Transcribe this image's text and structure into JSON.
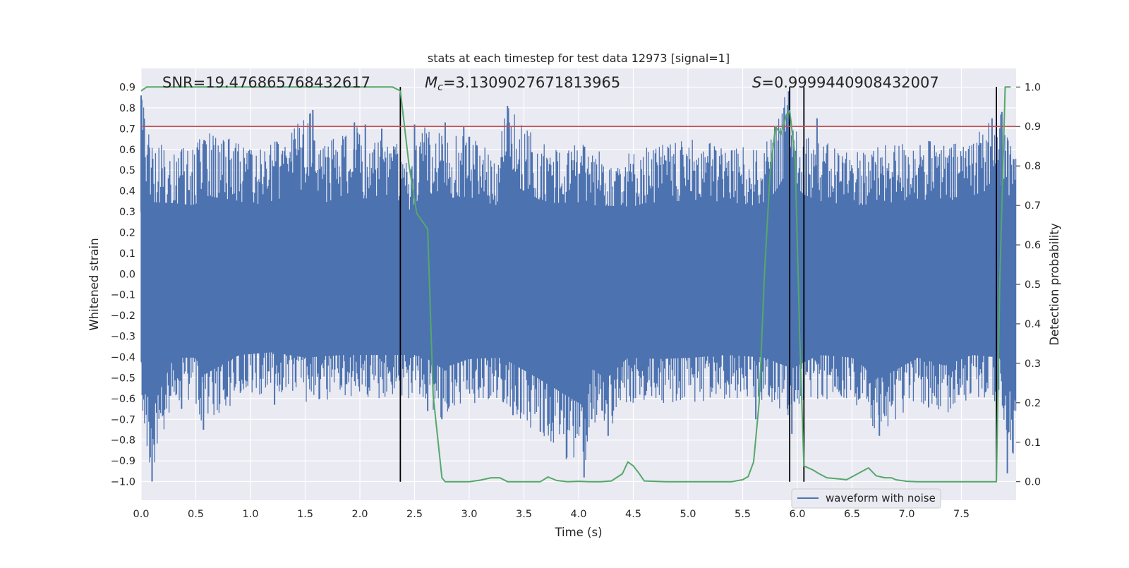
{
  "chart_data": {
    "type": "line",
    "title": "stats at each timestep for test data 12973 [signal=1]",
    "xlabel": "Time (s)",
    "ylabel_left": "Whitened strain",
    "ylabel_right": "Detection probability",
    "xlim": [
      0.0,
      8.0
    ],
    "ylim_left": [
      -1.09,
      0.99
    ],
    "ylim_right": [
      -0.047,
      1.047
    ],
    "x_ticks": [
      0.0,
      0.5,
      1.0,
      1.5,
      2.0,
      2.5,
      3.0,
      3.5,
      4.0,
      4.5,
      5.0,
      5.5,
      6.0,
      6.5,
      7.0,
      7.5
    ],
    "x_tick_labels": [
      "0.0",
      "0.5",
      "1.0",
      "1.5",
      "2.0",
      "2.5",
      "3.0",
      "3.5",
      "4.0",
      "4.5",
      "5.0",
      "5.5",
      "6.0",
      "6.5",
      "7.0",
      "7.5"
    ],
    "y_left_ticks": [
      0.9,
      0.8,
      0.7,
      0.6,
      0.5,
      0.4,
      0.3,
      0.2,
      0.1,
      0.0,
      -0.1,
      -0.2,
      -0.3,
      -0.4,
      -0.5,
      -0.6,
      -0.7,
      -0.8,
      -0.9,
      -1.0
    ],
    "y_left_tick_labels": [
      "0.9",
      "0.8",
      "0.7",
      "0.6",
      "0.5",
      "0.4",
      "0.3",
      "0.2",
      "0.1",
      "0.0",
      "−0.1",
      "−0.2",
      "−0.3",
      "−0.4",
      "−0.5",
      "−0.6",
      "−0.7",
      "−0.8",
      "−0.9",
      "−1.0"
    ],
    "y_right_ticks": [
      1.0,
      0.9,
      0.8,
      0.7,
      0.6,
      0.5,
      0.4,
      0.3,
      0.2,
      0.1,
      0.0
    ],
    "y_right_tick_labels": [
      "1.0",
      "0.9",
      "0.8",
      "0.7",
      "0.6",
      "0.5",
      "0.4",
      "0.3",
      "0.2",
      "0.1",
      "0.0"
    ],
    "grid": true,
    "annotations": {
      "snr": "SNR=19.476865768432617",
      "mc_symbol": "M",
      "mc_subscript": "c",
      "mc_value": "=3.1309027671813965",
      "s_symbol": "S",
      "s_value": "=0.9999440908432007"
    },
    "threshold": {
      "axis": "right",
      "value": 0.9,
      "color": "#c44e52"
    },
    "vertical_markers": [
      2.37,
      5.93,
      6.06,
      7.82
    ],
    "series": [
      {
        "name": "waveform with noise",
        "axis": "left",
        "kind": "noise_band",
        "color": "#4c72b0",
        "envelope_top_x": [
          0.0,
          0.1,
          0.3,
          0.5,
          0.55,
          0.9,
          1.0,
          1.3,
          1.57,
          1.62,
          1.95,
          2.05,
          2.2,
          2.37,
          2.45,
          2.6,
          2.78,
          2.95,
          3.25,
          3.35,
          3.7,
          4.05,
          4.15,
          4.5,
          4.6,
          5.1,
          5.45,
          5.6,
          5.75,
          5.9,
          6.05,
          6.2,
          6.5,
          6.8,
          7.1,
          7.4,
          7.7,
          7.78,
          7.87,
          7.95,
          8.0
        ],
        "envelope_top_y": [
          0.86,
          0.63,
          0.62,
          0.6,
          0.69,
          0.64,
          0.6,
          0.66,
          0.79,
          0.6,
          0.73,
          0.65,
          0.7,
          0.64,
          0.56,
          0.72,
          0.66,
          0.68,
          0.6,
          0.81,
          0.62,
          0.63,
          0.6,
          0.59,
          0.62,
          0.65,
          0.62,
          0.6,
          0.65,
          0.88,
          0.7,
          0.64,
          0.6,
          0.62,
          0.66,
          0.62,
          0.72,
          0.75,
          0.78,
          0.62,
          0.6
        ],
        "envelope_bottom_x": [
          0.0,
          0.1,
          0.3,
          0.5,
          0.57,
          0.9,
          1.2,
          1.5,
          1.85,
          2.2,
          2.5,
          2.6,
          2.75,
          3.0,
          3.3,
          3.6,
          4.05,
          4.12,
          4.25,
          4.45,
          4.75,
          5.05,
          5.35,
          5.7,
          5.95,
          6.2,
          6.5,
          6.75,
          7.1,
          7.35,
          7.6,
          7.85,
          8.0
        ],
        "envelope_bottom_y": [
          -0.65,
          -1.0,
          -0.62,
          -0.62,
          -0.75,
          -0.6,
          -0.58,
          -0.62,
          -0.6,
          -0.6,
          -0.6,
          -0.62,
          -0.7,
          -0.63,
          -0.62,
          -0.76,
          -0.98,
          -0.7,
          -0.78,
          -0.62,
          -0.63,
          -0.62,
          -0.6,
          -0.62,
          -0.7,
          -0.6,
          -0.62,
          -0.78,
          -0.62,
          -0.68,
          -0.6,
          -0.62,
          -0.96
        ],
        "spike_up_x": [
          0.0,
          1.57,
          1.95,
          2.05,
          2.2,
          2.5,
          2.78,
          2.95,
          3.35,
          5.92,
          6.18,
          7.78,
          7.87
        ],
        "spike_up_y": [
          0.86,
          0.79,
          0.73,
          0.72,
          0.7,
          0.72,
          0.73,
          0.71,
          0.81,
          0.88,
          0.75,
          0.75,
          0.78
        ],
        "spike_down_x": [
          0.1,
          0.37,
          0.57,
          1.22,
          2.62,
          2.75,
          3.4,
          3.65,
          4.05,
          4.12,
          4.27,
          5.62,
          5.95,
          6.75,
          7.2,
          7.92
        ],
        "spike_down_y": [
          -1.0,
          -0.65,
          -0.75,
          -0.63,
          -0.66,
          -0.7,
          -0.68,
          -0.76,
          -0.98,
          -0.7,
          -0.78,
          -0.7,
          -0.77,
          -0.78,
          -0.64,
          -0.96
        ]
      },
      {
        "name": "Detection probability",
        "axis": "right",
        "color": "#55a868",
        "x": [
          0.0,
          0.05,
          0.08,
          2.3,
          2.37,
          2.45,
          2.52,
          2.62,
          2.67,
          2.75,
          2.78,
          2.85,
          3.0,
          3.1,
          3.2,
          3.28,
          3.35,
          3.5,
          3.65,
          3.72,
          3.8,
          3.9,
          4.0,
          4.1,
          4.2,
          4.3,
          4.4,
          4.45,
          4.5,
          4.55,
          4.6,
          4.8,
          5.0,
          5.2,
          5.4,
          5.5,
          5.55,
          5.6,
          5.65,
          5.7,
          5.75,
          5.8,
          5.85,
          5.9,
          5.93,
          5.98,
          6.02,
          6.06,
          6.14,
          6.2,
          6.27,
          6.35,
          6.45,
          6.55,
          6.65,
          6.72,
          6.8,
          6.86,
          6.9,
          7.0,
          7.1,
          7.2,
          7.3,
          7.5,
          7.82,
          7.85,
          7.9,
          7.95
        ],
        "y": [
          0.99,
          1.0,
          1.0,
          1.0,
          0.99,
          0.8,
          0.68,
          0.64,
          0.22,
          0.01,
          0.0,
          0.0,
          0.0,
          0.004,
          0.01,
          0.01,
          0.0,
          0.0,
          0.0,
          0.012,
          0.003,
          0.0,
          0.001,
          0.0,
          0.0,
          0.002,
          0.02,
          0.05,
          0.04,
          0.022,
          0.002,
          0.0,
          0.0,
          0.0,
          0.0,
          0.005,
          0.013,
          0.05,
          0.2,
          0.53,
          0.78,
          0.9,
          0.88,
          0.93,
          0.94,
          0.82,
          0.38,
          0.04,
          0.03,
          0.02,
          0.01,
          0.008,
          0.005,
          0.02,
          0.035,
          0.015,
          0.01,
          0.01,
          0.005,
          0.001,
          0.0,
          0.0,
          0.0,
          0.0,
          0.0,
          0.5,
          1.0,
          1.0
        ]
      }
    ],
    "legend": {
      "location": "bottom-right",
      "entries": [
        "waveform with noise"
      ]
    }
  }
}
